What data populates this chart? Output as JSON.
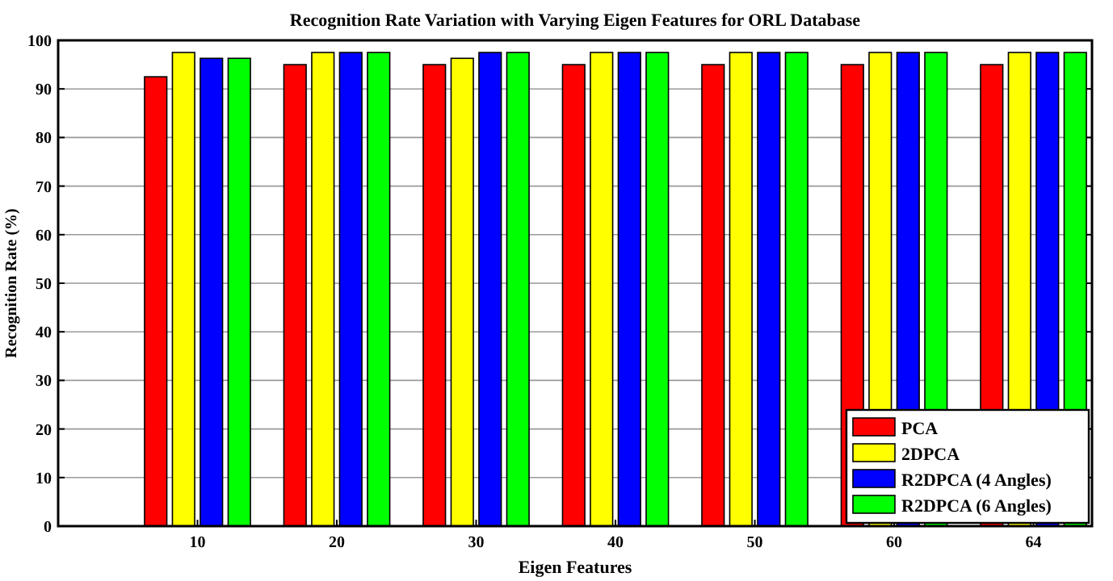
{
  "chart_data": {
    "type": "bar",
    "title": "Recognition Rate Variation with Varying Eigen Features for ORL Database",
    "xlabel": "Eigen Features",
    "ylabel": "Recognition Rate (%)",
    "categories": [
      "10",
      "20",
      "30",
      "40",
      "50",
      "60",
      "64"
    ],
    "series": [
      {
        "name": "PCA",
        "color": "#ff0000",
        "values": [
          92.5,
          95,
          95,
          95,
          95,
          95,
          95
        ]
      },
      {
        "name": "2DPCA",
        "color": "#ffff00",
        "values": [
          97.5,
          97.5,
          96.3,
          97.5,
          97.5,
          97.5,
          97.5
        ]
      },
      {
        "name": "R2DPCA (4 Angles)",
        "color": "#0000ff",
        "values": [
          96.3,
          97.5,
          97.5,
          97.5,
          97.5,
          97.5,
          97.5
        ]
      },
      {
        "name": "R2DPCA (6 Angles)",
        "color": "#00ff00",
        "values": [
          96.3,
          97.5,
          97.5,
          97.5,
          97.5,
          97.5,
          97.5
        ]
      }
    ],
    "ylim": [
      0,
      100
    ],
    "yticks": [
      0,
      10,
      20,
      30,
      40,
      50,
      60,
      70,
      80,
      90,
      100
    ],
    "grid": "y",
    "legend": "bottom right"
  }
}
